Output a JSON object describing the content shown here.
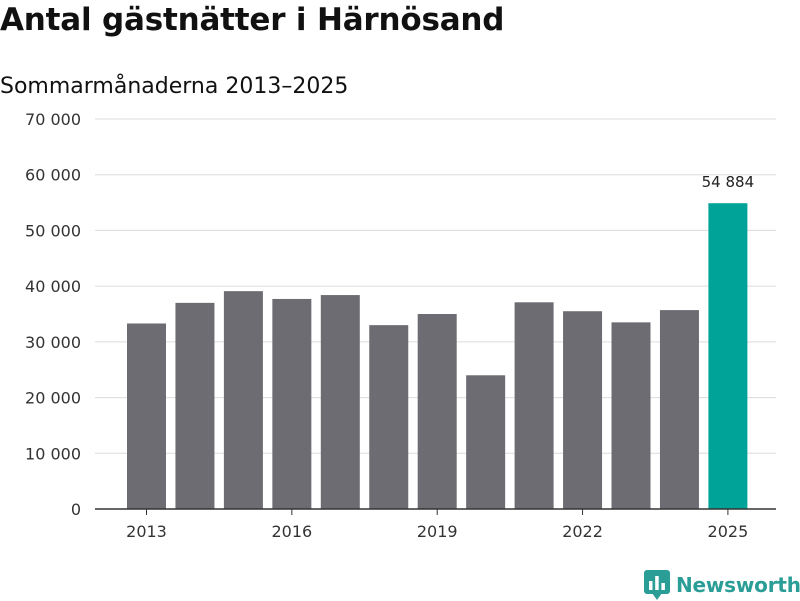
{
  "header": {
    "title": "Antal gästnätter i Härnösand",
    "subtitle": "Sommarmånaderna 2013–2025"
  },
  "brand": {
    "name": "Newsworthy",
    "icon": "bar-chart-speech-bubble-icon",
    "color": "#2a9d96"
  },
  "chart_data": {
    "type": "bar",
    "categories": [
      "2013",
      "2014",
      "2015",
      "2016",
      "2017",
      "2018",
      "2019",
      "2020",
      "2021",
      "2022",
      "2023",
      "2024",
      "2025"
    ],
    "values": [
      33300,
      37000,
      39100,
      37700,
      38400,
      33000,
      35000,
      24000,
      37100,
      35500,
      33500,
      35700,
      54884
    ],
    "x_tick_labels": [
      "2013",
      "",
      "",
      "2016",
      "",
      "",
      "2019",
      "",
      "",
      "2022",
      "",
      "",
      "2025"
    ],
    "y_ticks": [
      0,
      10000,
      20000,
      30000,
      40000,
      50000,
      60000,
      70000
    ],
    "y_tick_labels": [
      "0",
      "10 000",
      "20 000",
      "30 000",
      "40 000",
      "50 000",
      "60 000",
      "70 000"
    ],
    "ylim": [
      0,
      70000
    ],
    "grid": true,
    "bar_color": "#6d6c73",
    "highlight_color": "#00a398",
    "highlight_index": 12,
    "annotations": [
      {
        "index": 12,
        "text": "54 884"
      }
    ]
  }
}
